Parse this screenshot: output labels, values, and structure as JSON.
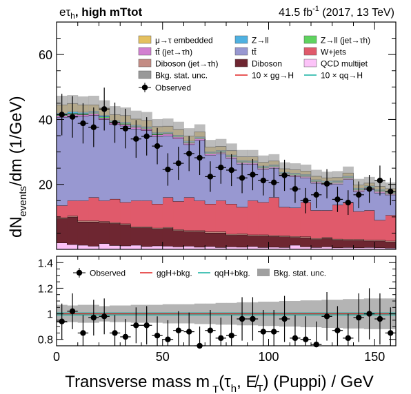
{
  "header": {
    "channel": "eτ",
    "channel_sub": "h",
    "category": ", high mTtot",
    "lumi_value": "41.5 fb",
    "lumi_exp": "-1",
    "lumi_tail": " (2017, 13 TeV)"
  },
  "legend_main": [
    {
      "label": "μ→τ embedded",
      "color": "#e4c05f",
      "kind": "box"
    },
    {
      "label": "Z→ll",
      "color": "#4fb1e1",
      "kind": "box"
    },
    {
      "label": "Z→ll (jet→τh)",
      "color": "#5fd35f",
      "kind": "box"
    },
    {
      "label": "tt̄ (jet→τh)",
      "color": "#d27fd0",
      "kind": "box"
    },
    {
      "label": "tt̄",
      "color": "#9898d1",
      "kind": "box"
    },
    {
      "label": "W+jets",
      "color": "#e05a6b",
      "kind": "box"
    },
    {
      "label": "Diboson (jet→τh)",
      "color": "#c48c84",
      "kind": "box"
    },
    {
      "label": "Diboson",
      "color": "#6e2631",
      "kind": "box"
    },
    {
      "label": "QCD multijet",
      "color": "#fcc3f8",
      "kind": "box"
    },
    {
      "label": "Bkg. stat. unc.",
      "color": "#999999",
      "kind": "box"
    },
    {
      "label": "10 × gg→H",
      "color": "#e02020",
      "kind": "line"
    },
    {
      "label": "10 × qq→H",
      "color": "#10b0a0",
      "kind": "line"
    },
    {
      "label": "Observed",
      "color": "#000000",
      "kind": "marker"
    }
  ],
  "legend_ratio": [
    {
      "label": "Observed",
      "kind": "marker",
      "color": "#000000"
    },
    {
      "label": "ggH+bkg.",
      "kind": "line",
      "color": "#e02020"
    },
    {
      "label": "qqH+bkg.",
      "kind": "line",
      "color": "#10b0a0"
    },
    {
      "label": "Bkg. stat. unc.",
      "kind": "box",
      "color": "#999999"
    }
  ],
  "axes": {
    "xlabel": "Transverse mass m T(τh, E̸T) (Puppi) / GeV",
    "ylabel": "dNevents/dm (1/GeV)"
  },
  "chart_data": {
    "type": "bar",
    "title": "eτh, high mTtot",
    "xlim": [
      0,
      160
    ],
    "ylim_main": [
      0,
      70
    ],
    "ylim_ratio": [
      0.75,
      1.45
    ],
    "xticks": [
      0,
      50,
      100,
      150
    ],
    "yticks_main": [
      20,
      40,
      60
    ],
    "yticks_ratio": [
      0.8,
      1,
      1.2,
      1.4
    ],
    "bin_width": 5,
    "bins_left": [
      0,
      5,
      10,
      15,
      20,
      25,
      30,
      35,
      40,
      45,
      50,
      55,
      60,
      65,
      70,
      75,
      80,
      85,
      90,
      95,
      100,
      105,
      110,
      115,
      120,
      125,
      130,
      135,
      140,
      145,
      150,
      155
    ],
    "stack_order": [
      "QCD multijet",
      "Diboson",
      "Diboson (jet→τh)",
      "W+jets",
      "tt̄",
      "tt̄ (jet→τh)",
      "Z→ll (jet→τh)",
      "Z→ll",
      "μ→τ embedded"
    ],
    "series": [
      {
        "name": "QCD multijet",
        "color": "#fcc3f8",
        "values": [
          2.0,
          1.5,
          1.3,
          1.0,
          1.8,
          1.2,
          1.1,
          1.3,
          0.9,
          1.1,
          1.0,
          0.8,
          1.0,
          0.7,
          0.9,
          0.6,
          0.8,
          0.7,
          0.9,
          0.6,
          0.7,
          0.6,
          1.3,
          0.8,
          0.6,
          0.8,
          0.5,
          0.6,
          0.5,
          0.6,
          0.5,
          0.4
        ]
      },
      {
        "name": "Diboson",
        "color": "#6e2631",
        "values": [
          7.5,
          8.5,
          7.2,
          7.5,
          6.5,
          6.8,
          6.5,
          5.4,
          5.8,
          5.2,
          5.5,
          5.0,
          4.5,
          4.8,
          4.2,
          4.5,
          3.6,
          3.8,
          3.3,
          3.6,
          3.3,
          3.3,
          2.4,
          2.8,
          2.5,
          2.6,
          2.4,
          2.2,
          2.3,
          2.0,
          2.1,
          1.9
        ]
      },
      {
        "name": "Diboson (jet→τh)",
        "color": "#c48c84",
        "values": [
          0.3,
          0.3,
          0.3,
          0.3,
          0.3,
          0.3,
          0.3,
          0.3,
          0.3,
          0.3,
          0.3,
          0.3,
          0.3,
          0.3,
          0.3,
          0.3,
          0.3,
          0.3,
          0.3,
          0.3,
          0.3,
          0.3,
          0.3,
          0.3,
          0.3,
          0.3,
          0.3,
          0.3,
          0.3,
          0.3,
          0.3,
          0.3
        ]
      },
      {
        "name": "W+jets",
        "color": "#e05a6b",
        "values": [
          3.7,
          4.7,
          6.2,
          7.2,
          6.4,
          7.2,
          6.6,
          8.0,
          8.0,
          7.4,
          9.2,
          8.7,
          10.2,
          9.2,
          8.6,
          9.6,
          9.3,
          8.2,
          10.5,
          10.0,
          11.7,
          8.8,
          8.8,
          10.6,
          8.6,
          8.3,
          10.5,
          11.4,
          8.6,
          9.1,
          6.1,
          7.9
        ]
      },
      {
        "name": "tt̄",
        "color": "#9898d1",
        "values": [
          27.2,
          26.1,
          26.0,
          25.3,
          25.0,
          23.0,
          23.5,
          22.1,
          21.6,
          20.8,
          19.0,
          19.3,
          16.3,
          18.6,
          15.0,
          14.4,
          14.0,
          13.3,
          11.2,
          10.1,
          9.0,
          9.7,
          9.6,
          7.5,
          8.4,
          8.0,
          6.4,
          7.0,
          6.1,
          6.5,
          8.4,
          6.3
        ]
      },
      {
        "name": "tt̄ (jet→τh)",
        "color": "#d27fd0",
        "values": [
          0.5,
          0.5,
          0.5,
          0.5,
          0.5,
          0.5,
          0.5,
          0.5,
          0.5,
          0.5,
          0.5,
          0.5,
          0.5,
          0.5,
          0.5,
          0.5,
          0.5,
          0.5,
          0.5,
          0.5,
          0.5,
          0.5,
          0.5,
          0.5,
          0.5,
          0.5,
          0.5,
          0.5,
          0.5,
          0.5,
          0.5,
          0.5
        ]
      },
      {
        "name": "Z→ll (jet→τh)",
        "color": "#5fd35f",
        "values": [
          0.3,
          0.3,
          0.3,
          0.3,
          0.3,
          0.3,
          0.3,
          0.3,
          0.3,
          0.3,
          0.3,
          0.3,
          0.3,
          0.3,
          0.3,
          0.3,
          0.3,
          0.3,
          0.3,
          0.3,
          0.3,
          0.3,
          0.3,
          0.3,
          0.3,
          0.3,
          0.3,
          0.3,
          0.3,
          0.3,
          0.3,
          0.3
        ]
      },
      {
        "name": "Z→ll",
        "color": "#4fb1e1",
        "values": [
          0.5,
          0.5,
          0.5,
          0.5,
          0.5,
          0.4,
          0.4,
          0.4,
          0.4,
          0.4,
          0.3,
          0.3,
          0.3,
          0.3,
          0.3,
          0.3,
          0.3,
          0.3,
          0.3,
          0.3,
          0.3,
          0.3,
          0.3,
          0.3,
          0.3,
          0.3,
          0.3,
          0.3,
          0.3,
          0.3,
          0.3,
          0.3
        ]
      },
      {
        "name": "μ→τ embedded",
        "color": "#e4c05f",
        "values": [
          2.5,
          2.5,
          2.2,
          1.9,
          2.2,
          1.8,
          2.0,
          1.8,
          1.9,
          1.8,
          1.8,
          1.7,
          1.5,
          1.5,
          1.4,
          1.2,
          1.3,
          1.1,
          1.2,
          1.1,
          1.1,
          1.0,
          1.0,
          1.0,
          1.0,
          0.9,
          0.9,
          0.9,
          0.9,
          0.8,
          0.9,
          0.8
        ]
      }
    ],
    "stat_unc_abs": [
      2.8,
      2.6,
      2.6,
      2.8,
      2.4,
      2.6,
      2.5,
      2.6,
      2.6,
      2.3,
      2.4,
      2.4,
      2.4,
      2.3,
      2.2,
      2.3,
      2.2,
      2.1,
      2.1,
      2.1,
      2.1,
      2.0,
      2.0,
      2.0,
      2.0,
      1.9,
      2.0,
      2.0,
      1.9,
      1.9,
      1.9,
      1.9
    ],
    "observed": [
      41.5,
      40.8,
      38.8,
      37.6,
      43.2,
      39.0,
      37.2,
      34.0,
      34.8,
      31.8,
      24.6,
      26.5,
      29.5,
      28.2,
      22.4,
      25.2,
      24.4,
      22.0,
      23.0,
      21.2,
      20.6,
      22.8,
      18.6,
      15.0,
      16.8,
      20.2,
      15.4,
      14.4,
      16.8,
      18.6,
      21.2,
      17.8
    ],
    "observed_err": [
      6.4,
      6.4,
      6.2,
      6.1,
      6.6,
      6.2,
      6.1,
      5.8,
      5.9,
      5.6,
      5.0,
      5.1,
      5.4,
      5.3,
      4.7,
      5.0,
      4.9,
      4.7,
      4.8,
      4.6,
      4.5,
      4.8,
      4.3,
      3.9,
      4.1,
      4.5,
      3.9,
      3.8,
      4.1,
      4.3,
      4.6,
      4.2
    ],
    "ratio": [
      0.94,
      1.02,
      0.85,
      0.97,
      0.98,
      0.85,
      0.82,
      0.91,
      0.91,
      0.83,
      0.8,
      0.87,
      0.86,
      0.75,
      0.87,
      0.81,
      0.83,
      0.96,
      0.96,
      0.86,
      0.86,
      0.96,
      0.81,
      0.8,
      0.76,
      0.98,
      0.87,
      0.81,
      0.97,
      1.0,
      0.96,
      0.85
    ],
    "ratio_err": [
      0.14,
      0.14,
      0.14,
      0.14,
      0.14,
      0.14,
      0.14,
      0.14,
      0.15,
      0.15,
      0.15,
      0.15,
      0.15,
      0.15,
      0.16,
      0.16,
      0.16,
      0.17,
      0.17,
      0.17,
      0.17,
      0.18,
      0.18,
      0.18,
      0.18,
      0.19,
      0.19,
      0.19,
      0.19,
      0.2,
      0.2,
      0.2
    ],
    "ratio_unc": [
      0.07,
      0.065,
      0.07,
      0.07,
      0.06,
      0.065,
      0.065,
      0.07,
      0.07,
      0.07,
      0.075,
      0.075,
      0.075,
      0.08,
      0.08,
      0.085,
      0.085,
      0.09,
      0.09,
      0.095,
      0.095,
      0.1,
      0.1,
      0.105,
      0.105,
      0.11,
      0.11,
      0.115,
      0.115,
      0.12,
      0.12,
      0.12
    ]
  }
}
